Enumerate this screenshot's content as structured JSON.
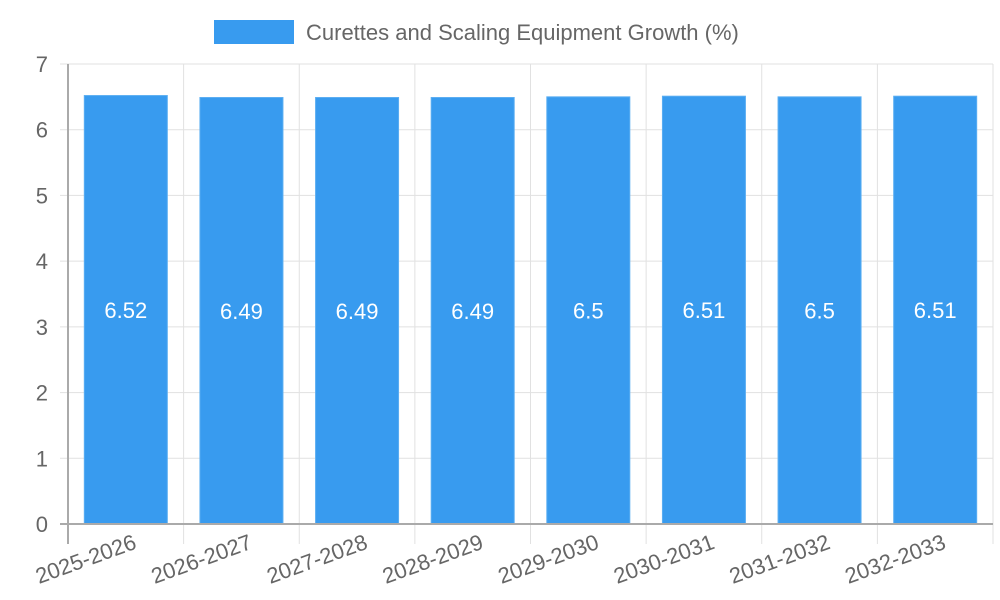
{
  "chart_data": {
    "type": "bar",
    "title": "",
    "legend": [
      {
        "label": "Curettes and Scaling Equipment Growth (%)",
        "color": "#389BEF"
      }
    ],
    "categories": [
      "2025-2026",
      "2026-2027",
      "2027-2028",
      "2028-2029",
      "2029-2030",
      "2030-2031",
      "2031-2032",
      "2032-2033"
    ],
    "series": [
      {
        "name": "Curettes and Scaling Equipment Growth (%)",
        "values": [
          6.52,
          6.49,
          6.49,
          6.49,
          6.5,
          6.51,
          6.5,
          6.51
        ],
        "color": "#389BEF"
      }
    ],
    "data_labels": [
      "6.52",
      "6.49",
      "6.49",
      "6.49",
      "6.5",
      "6.51",
      "6.5",
      "6.51"
    ],
    "xlabel": "",
    "ylabel": "",
    "ylim": [
      0,
      7
    ],
    "yticks": [
      0,
      1,
      2,
      3,
      4,
      5,
      6,
      7
    ],
    "grid": true,
    "legend_position": "top"
  }
}
